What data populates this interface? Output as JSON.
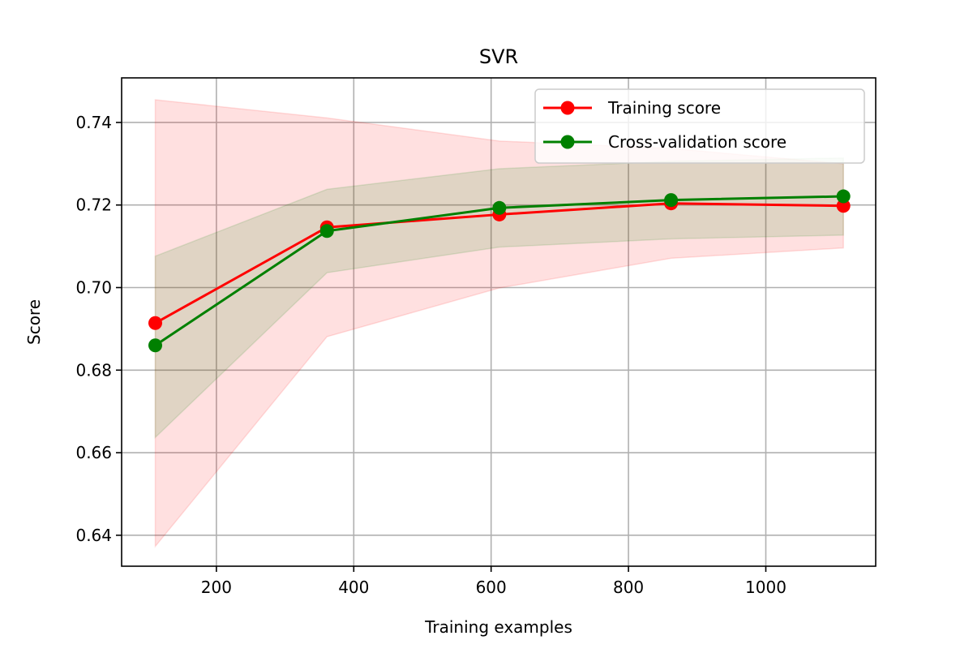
{
  "chart_data": {
    "type": "line",
    "title": "SVR",
    "xlabel": "Training examples",
    "ylabel": "Score",
    "xlim": [
      62,
      1160
    ],
    "ylim": [
      0.6325,
      0.7508
    ],
    "xticks": [
      200,
      400,
      600,
      800,
      1000
    ],
    "yticks": [
      0.64,
      0.66,
      0.68,
      0.7,
      0.72,
      0.74
    ],
    "xtick_labels": [
      "200",
      "400",
      "600",
      "800",
      "1000"
    ],
    "ytick_labels": [
      "0.64",
      "0.66",
      "0.68",
      "0.70",
      "0.72",
      "0.74"
    ],
    "grid": true,
    "legend_position": "upper right",
    "x": [
      111,
      361,
      612,
      862,
      1113
    ],
    "series": [
      {
        "name": "Training score",
        "color": "#ff0000",
        "marker": "circle",
        "values": [
          0.6914,
          0.7146,
          0.7177,
          0.7204,
          0.7198
        ],
        "band_lower": [
          0.6373,
          0.6881,
          0.6999,
          0.7071,
          0.7096
        ],
        "band_upper": [
          0.7455,
          0.7411,
          0.7355,
          0.7337,
          0.73
        ],
        "band_color": "#ff0000",
        "band_opacity": 0.12
      },
      {
        "name": "Cross-validation score",
        "color": "#008000",
        "marker": "circle",
        "values": [
          0.686,
          0.7137,
          0.7193,
          0.7212,
          0.7221
        ],
        "band_lower": [
          0.6637,
          0.7036,
          0.7098,
          0.7118,
          0.7127
        ],
        "band_upper": [
          0.7076,
          0.7238,
          0.7288,
          0.7306,
          0.7314
        ],
        "band_color": "#008000",
        "band_opacity": 0.12
      }
    ]
  }
}
